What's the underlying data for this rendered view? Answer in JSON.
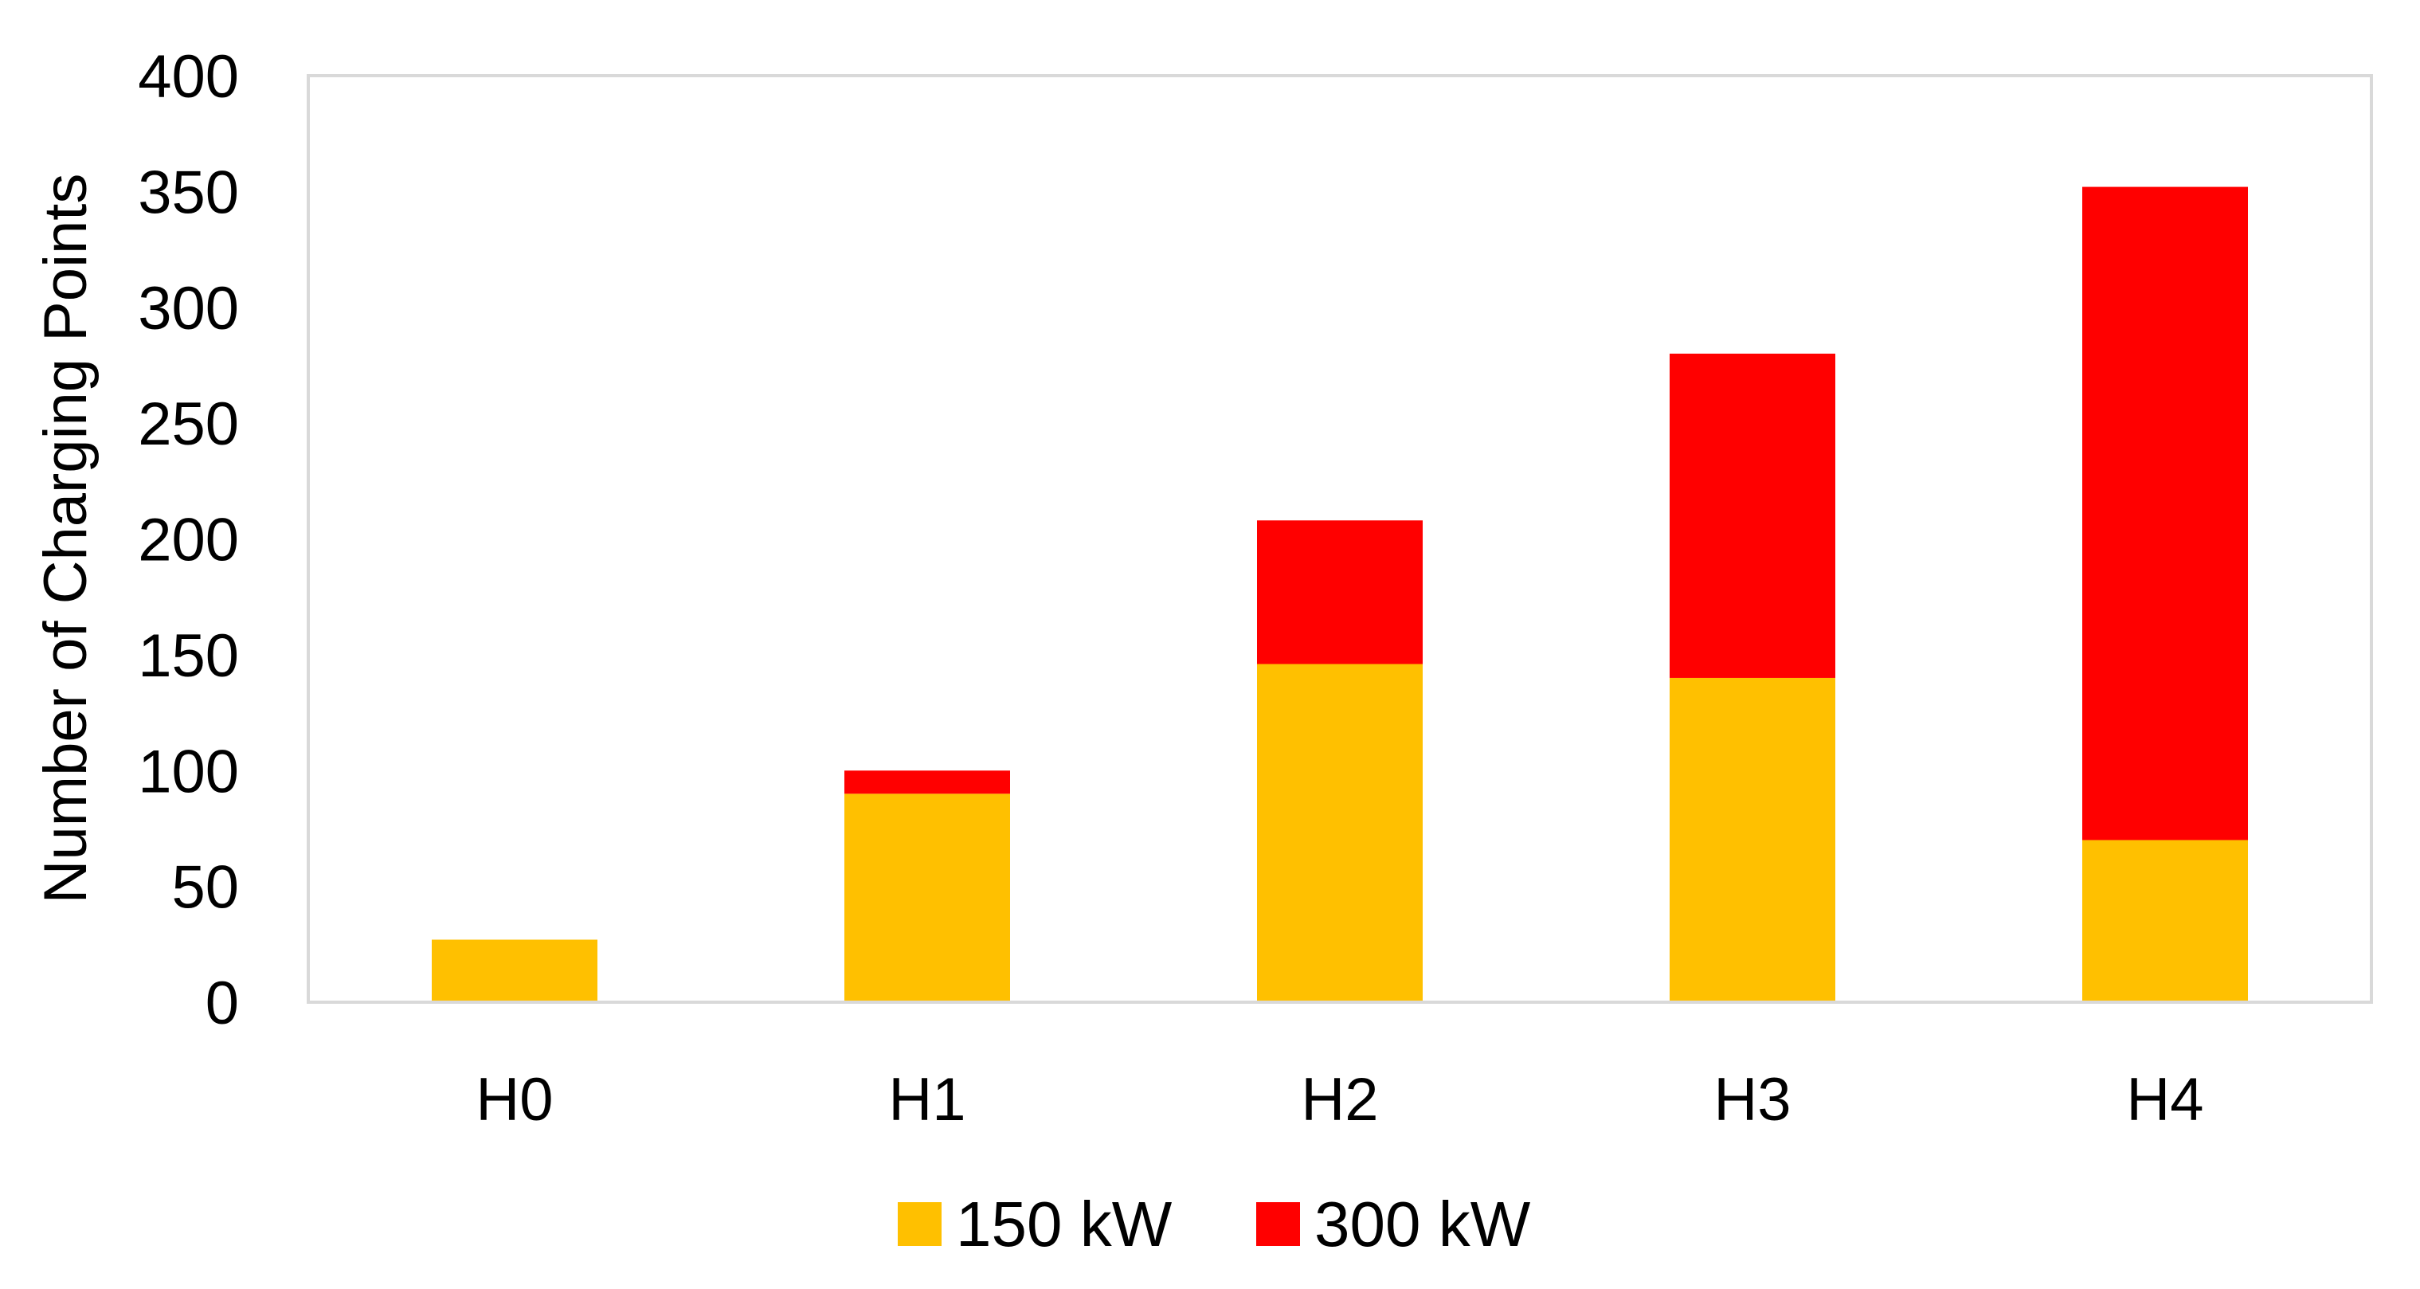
{
  "chart_data": {
    "type": "bar",
    "stacked": true,
    "categories": [
      "H0",
      "H1",
      "H2",
      "H3",
      "H4"
    ],
    "series": [
      {
        "name": "150 kW",
        "color": "#FFC000",
        "values": [
          27,
          90,
          146,
          140,
          70
        ]
      },
      {
        "name": "300 kW",
        "color": "#FF0000",
        "values": [
          0,
          10,
          62,
          140,
          282
        ]
      }
    ],
    "ylabel": "Number of Charging Points",
    "xlabel": "",
    "ylim": [
      0,
      400
    ],
    "yticks": [
      "0",
      "50",
      "100",
      "150",
      "200",
      "250",
      "300",
      "350",
      "400"
    ],
    "grid": false,
    "legend_position": "bottom-center",
    "frame_color": "#D9D9D9"
  }
}
